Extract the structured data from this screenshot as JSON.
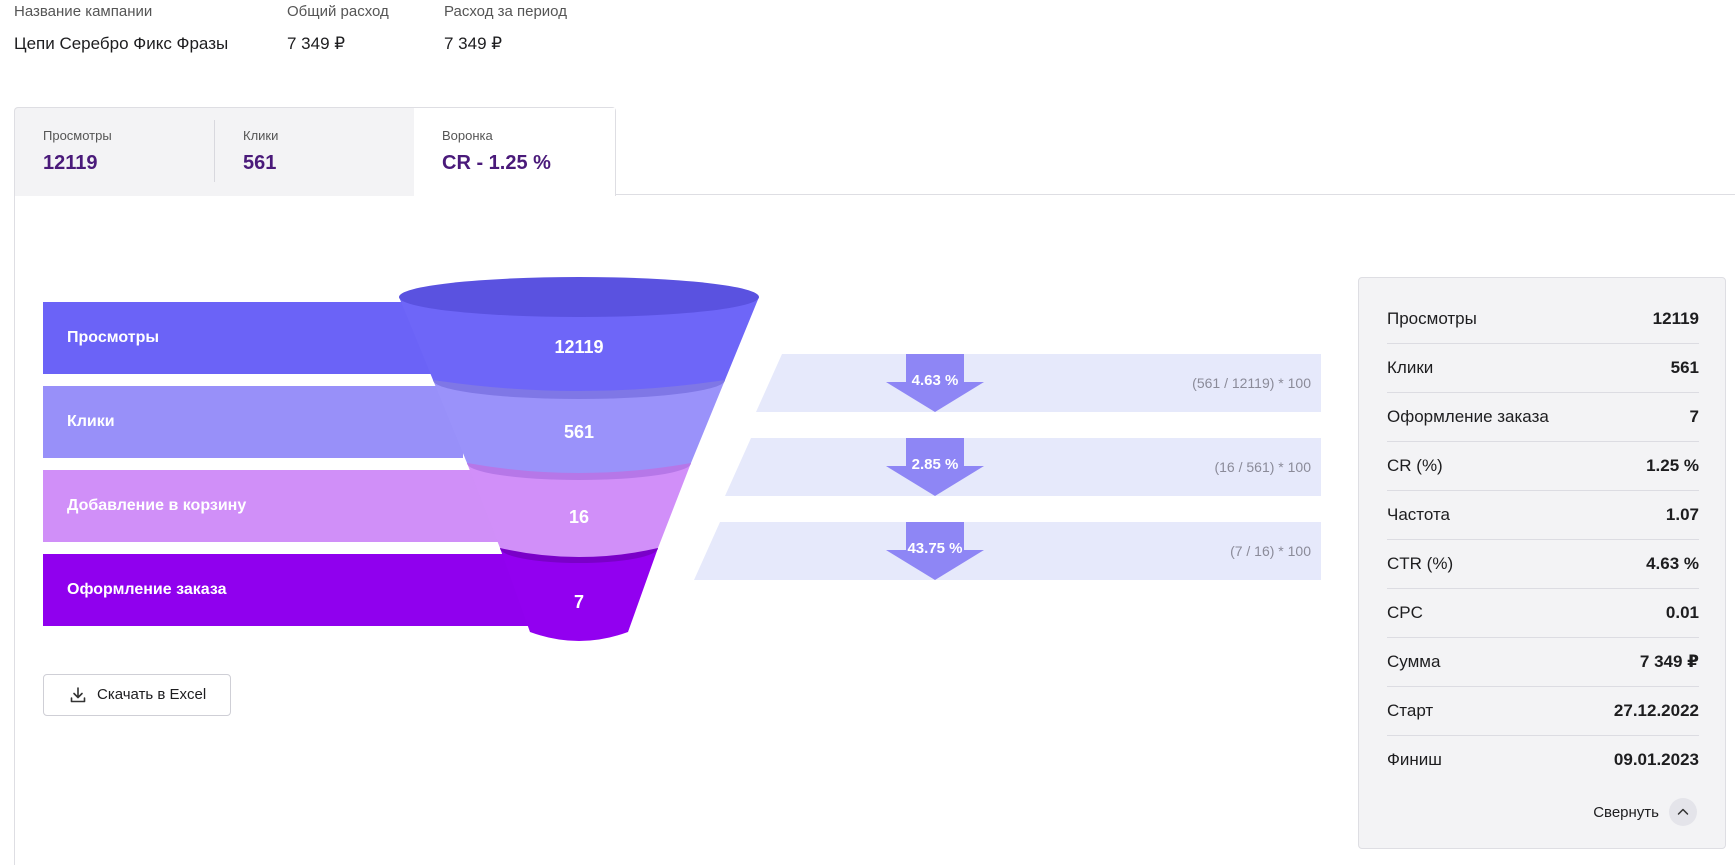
{
  "header": {
    "campaign_label": "Название кампании",
    "campaign_value": "Цепи Серебро Фикс Фразы",
    "total_label": "Общий расход",
    "total_value": "7 349 ₽",
    "period_label": "Расход за период",
    "period_value": "7 349 ₽"
  },
  "tabs": [
    {
      "label": "Просмотры",
      "value": "12119"
    },
    {
      "label": "Клики",
      "value": "561"
    },
    {
      "label": "Воронка",
      "value": "CR - 1.25 %"
    }
  ],
  "funnel": {
    "stages": [
      {
        "label": "Просмотры",
        "value": "12119",
        "color": "#6b63f7"
      },
      {
        "label": "Клики",
        "value": "561",
        "color": "#9890f9"
      },
      {
        "label": "Добавление в корзину",
        "value": "16",
        "color": "#d08ff8"
      },
      {
        "label": "Оформление заказа",
        "value": "7",
        "color": "#9000ee"
      }
    ],
    "conversions": [
      {
        "percent": "4.63 %",
        "formula": "(561 / 12119) * 100"
      },
      {
        "percent": "2.85 %",
        "formula": "(16 / 561) * 100"
      },
      {
        "percent": "43.75 %",
        "formula": "(7 / 16) * 100"
      }
    ]
  },
  "download_label": "Скачать в Excel",
  "stats": [
    {
      "key": "Просмотры",
      "value": "12119"
    },
    {
      "key": "Клики",
      "value": "561"
    },
    {
      "key": "Оформление заказа",
      "value": "7"
    },
    {
      "key": "CR (%)",
      "value": "1.25 %"
    },
    {
      "key": "Частота",
      "value": "1.07"
    },
    {
      "key": "CTR (%)",
      "value": "4.63 %"
    },
    {
      "key": "CPC",
      "value": "0.01"
    },
    {
      "key": "Сумма",
      "value": "7 349 ₽"
    },
    {
      "key": "Старт",
      "value": "27.12.2022"
    },
    {
      "key": "Финиш",
      "value": "09.01.2023"
    }
  ],
  "collapse_label": "Свернуть"
}
